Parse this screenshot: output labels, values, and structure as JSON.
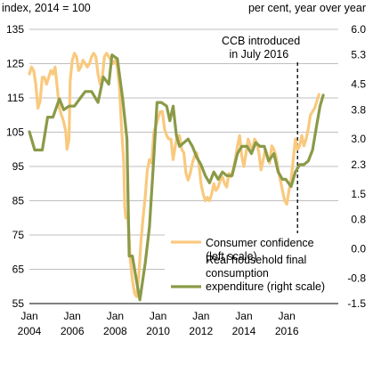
{
  "chart_data": {
    "type": "line",
    "left_axis_title": "index, 2014 = 100",
    "right_axis_title": "per cent, year over year",
    "left_axis": {
      "min": 55,
      "max": 135,
      "ticks": [
        55,
        65,
        75,
        85,
        95,
        105,
        115,
        125,
        135
      ]
    },
    "right_axis": {
      "min": -1.5,
      "max": 6.0,
      "ticks": [
        "-1.5",
        "-0.8",
        "0.0",
        "0.8",
        "1.5",
        "2.3",
        "3.0",
        "3.8",
        "4.5",
        "5.3",
        "6.0"
      ]
    },
    "x_axis": {
      "min": 2004.0,
      "max": 2018.4,
      "ticks": [
        {
          "value": 2004,
          "label_top": "Jan",
          "label_bottom": "2004"
        },
        {
          "value": 2006,
          "label_top": "Jan",
          "label_bottom": "2006"
        },
        {
          "value": 2008,
          "label_top": "Jan",
          "label_bottom": "2008"
        },
        {
          "value": 2010,
          "label_top": "Jan",
          "label_bottom": "2010"
        },
        {
          "value": 2012,
          "label_top": "Jan",
          "label_bottom": "2012"
        },
        {
          "value": 2014,
          "label_top": "Jan",
          "label_bottom": "2014"
        },
        {
          "value": 2016,
          "label_top": "Jan",
          "label_bottom": "2016"
        }
      ]
    },
    "grid": true,
    "annotation": {
      "text_line1": "CCB introduced",
      "text_line2": "in July 2016",
      "x": 2016.5
    },
    "legend_position": "bottom-right",
    "series": [
      {
        "name": "Consumer confidence (left scale)",
        "legend_line1": "Consumer confidence",
        "legend_line2": "(left scale)",
        "axis": "left",
        "color": "#f9c97e",
        "points": [
          [
            2004.0,
            122
          ],
          [
            2004.1,
            124
          ],
          [
            2004.2,
            123
          ],
          [
            2004.3,
            119
          ],
          [
            2004.4,
            112
          ],
          [
            2004.5,
            114
          ],
          [
            2004.6,
            121
          ],
          [
            2004.7,
            121
          ],
          [
            2004.8,
            119
          ],
          [
            2004.9,
            121
          ],
          [
            2005.0,
            123
          ],
          [
            2005.1,
            122
          ],
          [
            2005.2,
            124
          ],
          [
            2005.3,
            118
          ],
          [
            2005.4,
            112
          ],
          [
            2005.5,
            110
          ],
          [
            2005.6,
            108
          ],
          [
            2005.7,
            105
          ],
          [
            2005.75,
            100
          ],
          [
            2005.85,
            103
          ],
          [
            2005.9,
            120
          ],
          [
            2006.0,
            126
          ],
          [
            2006.1,
            128
          ],
          [
            2006.2,
            127
          ],
          [
            2006.3,
            123
          ],
          [
            2006.4,
            124
          ],
          [
            2006.5,
            126
          ],
          [
            2006.6,
            125
          ],
          [
            2006.7,
            124
          ],
          [
            2006.8,
            125
          ],
          [
            2006.9,
            127
          ],
          [
            2007.0,
            128
          ],
          [
            2007.1,
            127
          ],
          [
            2007.2,
            122
          ],
          [
            2007.3,
            119
          ],
          [
            2007.4,
            121
          ],
          [
            2007.5,
            127
          ],
          [
            2007.6,
            128
          ],
          [
            2007.7,
            127
          ],
          [
            2007.8,
            126
          ],
          [
            2007.9,
            125
          ],
          [
            2008.0,
            126
          ],
          [
            2008.1,
            124
          ],
          [
            2008.2,
            118
          ],
          [
            2008.3,
            106
          ],
          [
            2008.4,
            96
          ],
          [
            2008.45,
            83
          ],
          [
            2008.5,
            80
          ],
          [
            2008.6,
            80
          ],
          [
            2008.7,
            68
          ],
          [
            2008.8,
            62
          ],
          [
            2008.9,
            58
          ],
          [
            2009.0,
            57
          ],
          [
            2009.1,
            63
          ],
          [
            2009.2,
            73
          ],
          [
            2009.3,
            80
          ],
          [
            2009.4,
            86
          ],
          [
            2009.5,
            94
          ],
          [
            2009.6,
            97
          ],
          [
            2009.7,
            96
          ],
          [
            2009.8,
            105
          ],
          [
            2009.9,
            107
          ],
          [
            2010.0,
            109
          ],
          [
            2010.1,
            111
          ],
          [
            2010.2,
            111
          ],
          [
            2010.3,
            106
          ],
          [
            2010.4,
            104
          ],
          [
            2010.5,
            103
          ],
          [
            2010.6,
            103
          ],
          [
            2010.7,
            97
          ],
          [
            2010.8,
            101
          ],
          [
            2010.9,
            104
          ],
          [
            2011.0,
            104
          ],
          [
            2011.1,
            100
          ],
          [
            2011.2,
            99
          ],
          [
            2011.3,
            93
          ],
          [
            2011.4,
            91
          ],
          [
            2011.5,
            93
          ],
          [
            2011.6,
            96
          ],
          [
            2011.7,
            98
          ],
          [
            2011.8,
            99
          ],
          [
            2011.9,
            96
          ],
          [
            2012.0,
            90
          ],
          [
            2012.1,
            87
          ],
          [
            2012.2,
            85
          ],
          [
            2012.3,
            86
          ],
          [
            2012.4,
            85
          ],
          [
            2012.5,
            87
          ],
          [
            2012.6,
            90
          ],
          [
            2012.7,
            88
          ],
          [
            2012.8,
            89
          ],
          [
            2012.9,
            91
          ],
          [
            2013.0,
            92
          ],
          [
            2013.1,
            90
          ],
          [
            2013.2,
            89
          ],
          [
            2013.3,
            93
          ],
          [
            2013.4,
            92
          ],
          [
            2013.5,
            94
          ],
          [
            2013.6,
            97
          ],
          [
            2013.7,
            101
          ],
          [
            2013.8,
            104
          ],
          [
            2013.9,
            98
          ],
          [
            2014.0,
            95
          ],
          [
            2014.1,
            99
          ],
          [
            2014.2,
            103
          ],
          [
            2014.3,
            101
          ],
          [
            2014.4,
            100
          ],
          [
            2014.5,
            103
          ],
          [
            2014.6,
            102
          ],
          [
            2014.7,
            99
          ],
          [
            2014.8,
            94
          ],
          [
            2014.9,
            97
          ],
          [
            2015.0,
            100
          ],
          [
            2015.1,
            98
          ],
          [
            2015.2,
            96
          ],
          [
            2015.3,
            101
          ],
          [
            2015.4,
            100
          ],
          [
            2015.5,
            98
          ],
          [
            2015.6,
            94
          ],
          [
            2015.7,
            91
          ],
          [
            2015.8,
            88
          ],
          [
            2015.9,
            85
          ],
          [
            2016.0,
            84
          ],
          [
            2016.1,
            88
          ],
          [
            2016.2,
            91
          ],
          [
            2016.3,
            97
          ],
          [
            2016.4,
            103
          ],
          [
            2016.5,
            100
          ],
          [
            2016.6,
            101
          ],
          [
            2016.7,
            104
          ],
          [
            2016.8,
            101
          ],
          [
            2016.9,
            103
          ],
          [
            2017.0,
            106
          ],
          [
            2017.1,
            110
          ],
          [
            2017.2,
            111
          ],
          [
            2017.3,
            112
          ],
          [
            2017.4,
            114
          ],
          [
            2017.5,
            116
          ]
        ]
      },
      {
        "name": "Real household final consumption expenditure (right scale)",
        "legend_line1": "Real household final",
        "legend_line2": "consumption",
        "legend_line3": "expenditure (right scale)",
        "axis": "right",
        "color": "#8a9a48",
        "points": [
          [
            2004.0,
            3.2
          ],
          [
            2004.25,
            2.7
          ],
          [
            2004.6,
            2.7
          ],
          [
            2004.85,
            3.6
          ],
          [
            2005.1,
            3.6
          ],
          [
            2005.4,
            4.1
          ],
          [
            2005.6,
            3.8
          ],
          [
            2005.85,
            3.9
          ],
          [
            2006.1,
            3.9
          ],
          [
            2006.35,
            4.1
          ],
          [
            2006.6,
            4.3
          ],
          [
            2006.9,
            4.3
          ],
          [
            2007.2,
            4.0
          ],
          [
            2007.45,
            4.7
          ],
          [
            2007.7,
            4.5
          ],
          [
            2007.85,
            5.3
          ],
          [
            2008.1,
            5.2
          ],
          [
            2008.35,
            4.1
          ],
          [
            2008.55,
            3.0
          ],
          [
            2008.65,
            -0.2
          ],
          [
            2008.8,
            -0.2
          ],
          [
            2009.0,
            -0.9
          ],
          [
            2009.15,
            -1.4
          ],
          [
            2009.4,
            -0.4
          ],
          [
            2009.6,
            0.6
          ],
          [
            2009.8,
            2.5
          ],
          [
            2009.95,
            4.0
          ],
          [
            2010.15,
            4.0
          ],
          [
            2010.4,
            3.9
          ],
          [
            2010.55,
            3.5
          ],
          [
            2010.7,
            3.9
          ],
          [
            2010.85,
            3.1
          ],
          [
            2011.0,
            2.8
          ],
          [
            2011.2,
            2.9
          ],
          [
            2011.4,
            3.0
          ],
          [
            2011.6,
            2.8
          ],
          [
            2011.8,
            2.5
          ],
          [
            2012.0,
            2.3
          ],
          [
            2012.2,
            2.0
          ],
          [
            2012.4,
            1.8
          ],
          [
            2012.6,
            2.1
          ],
          [
            2012.8,
            1.9
          ],
          [
            2013.0,
            2.1
          ],
          [
            2013.2,
            2.0
          ],
          [
            2013.45,
            2.0
          ],
          [
            2013.7,
            2.6
          ],
          [
            2013.9,
            2.8
          ],
          [
            2014.15,
            2.8
          ],
          [
            2014.35,
            2.6
          ],
          [
            2014.55,
            2.9
          ],
          [
            2014.75,
            2.8
          ],
          [
            2014.95,
            2.8
          ],
          [
            2015.15,
            2.4
          ],
          [
            2015.4,
            2.6
          ],
          [
            2015.6,
            2.1
          ],
          [
            2015.8,
            1.9
          ],
          [
            2015.95,
            1.9
          ],
          [
            2016.2,
            1.7
          ],
          [
            2016.4,
            2.1
          ],
          [
            2016.6,
            2.3
          ],
          [
            2016.8,
            2.3
          ],
          [
            2017.0,
            2.4
          ],
          [
            2017.2,
            2.7
          ],
          [
            2017.4,
            3.4
          ],
          [
            2017.55,
            3.9
          ],
          [
            2017.7,
            4.2
          ]
        ]
      }
    ]
  }
}
